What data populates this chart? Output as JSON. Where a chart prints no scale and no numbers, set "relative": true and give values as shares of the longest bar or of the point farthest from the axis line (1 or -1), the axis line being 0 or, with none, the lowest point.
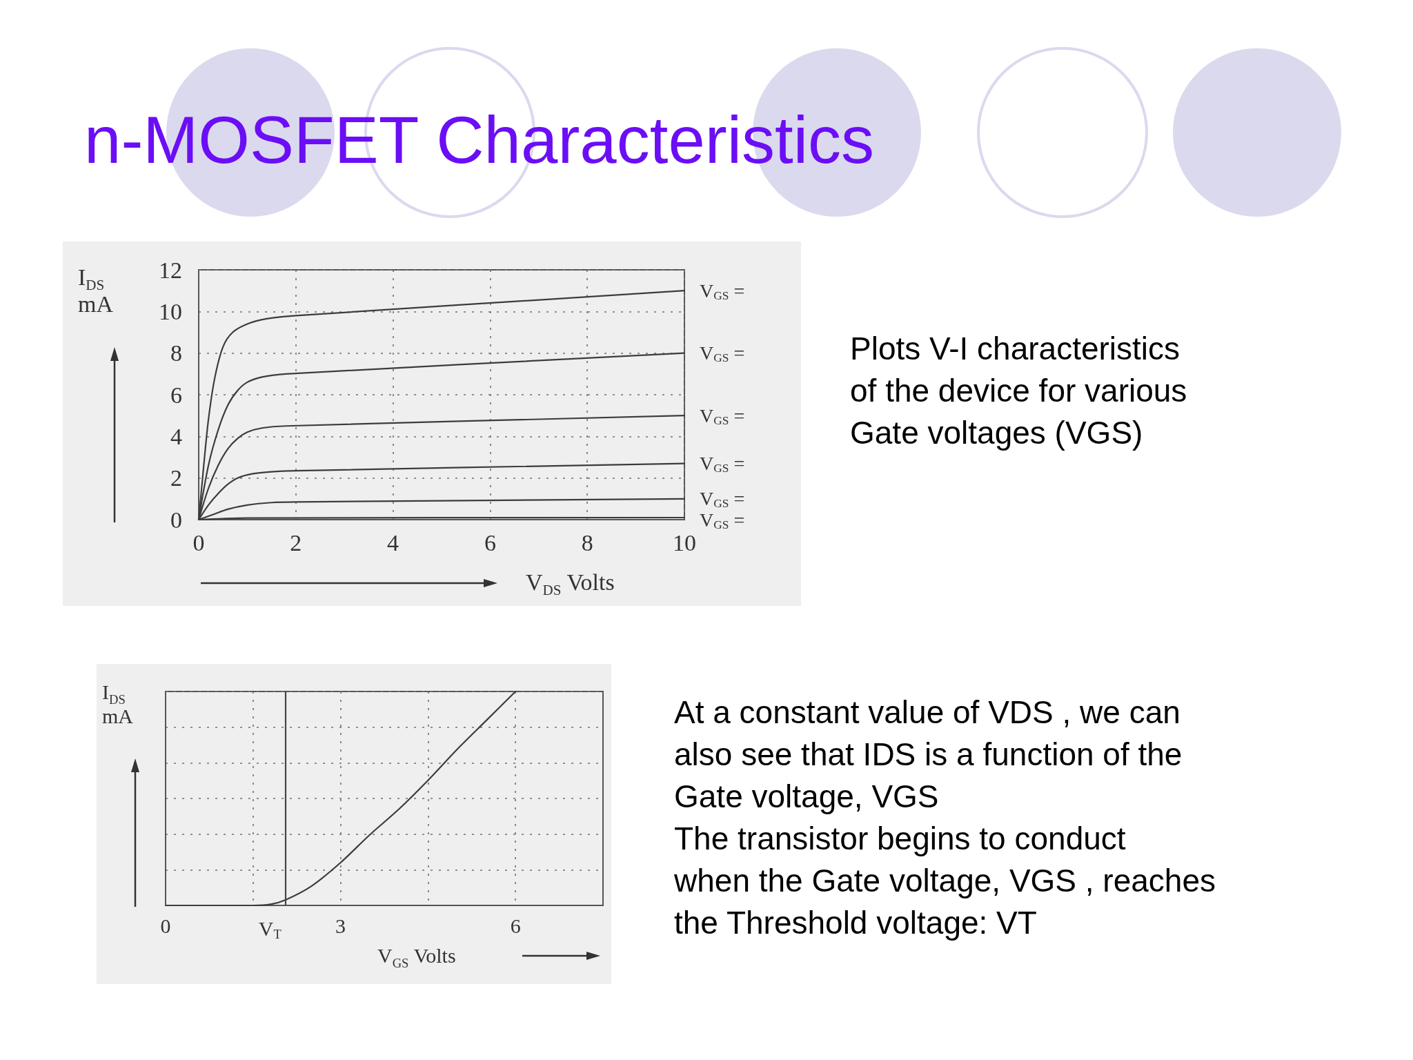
{
  "chart_data": [
    {
      "type": "line",
      "title": "n-MOSFET Characteristics",
      "xlabel": "V$_{DS}$ Volts",
      "ylabel": "I$_{DS}$\nmA",
      "annotations": [
        "Plots V-I characteristics\nof the device for various\nGate voltages (VGS)"
      ],
      "xlim": [
        0,
        10
      ],
      "xticks": [
        0,
        2,
        4,
        6,
        8,
        10
      ],
      "ylim": [
        0,
        12
      ],
      "yticks": [
        0,
        2,
        4,
        6,
        8,
        10,
        12
      ],
      "grid": true,
      "marker": "none",
      "line_style": "solid",
      "series": [
        {
          "name": "V$_{GS}$ =",
          "color": "#3c3c3c",
          "x": [
            0,
            0.1,
            0.2,
            0.33,
            0.5,
            0.7,
            1.0,
            1.4,
            2,
            10
          ],
          "values": [
            0,
            2.5,
            4.8,
            6.8,
            8.3,
            9.0,
            9.4,
            9.65,
            9.8,
            11.0
          ]
        },
        {
          "name": "V$_{GS}$ =",
          "color": "#3c3c3c",
          "x": [
            0,
            0.2,
            0.4,
            0.6,
            0.8,
            1.0,
            1.3,
            1.8,
            10
          ],
          "values": [
            0,
            2.6,
            4.3,
            5.5,
            6.2,
            6.6,
            6.85,
            7.0,
            8.0
          ]
        },
        {
          "name": "V$_{GS}$ =",
          "color": "#3c3c3c",
          "x": [
            0,
            0.2,
            0.4,
            0.6,
            0.8,
            1.0,
            1.3,
            1.8,
            10
          ],
          "values": [
            0,
            1.5,
            2.6,
            3.4,
            3.9,
            4.2,
            4.4,
            4.5,
            5.0
          ]
        },
        {
          "name": "V$_{GS}$ =",
          "color": "#3c3c3c",
          "x": [
            0,
            0.2,
            0.4,
            0.6,
            0.8,
            1.1,
            1.5,
            2,
            10
          ],
          "values": [
            0,
            0.7,
            1.25,
            1.7,
            2.0,
            2.2,
            2.3,
            2.35,
            2.7
          ]
        },
        {
          "name": "V$_{GS}$ =",
          "color": "#3c3c3c",
          "x": [
            0,
            0.3,
            0.6,
            1.0,
            1.5,
            2,
            10
          ],
          "values": [
            0,
            0.25,
            0.5,
            0.7,
            0.82,
            0.85,
            1.0
          ]
        },
        {
          "name": "V$_{GS}$ =",
          "color": "#3c3c3c",
          "x": [
            0,
            0.5,
            1,
            10
          ],
          "values": [
            0,
            0.05,
            0.08,
            0.1
          ]
        }
      ]
    },
    {
      "type": "line",
      "xlabel": "V$_{GS}$ Volts",
      "ylabel": "I$_{DS}$\nmA",
      "annotations": [
        "At a constant value of VDS , we can\nalso see that IDS is a function of the\nGate voltage, VGS\nThe transistor begins to conduct\nwhen the Gate voltage, VGS , reaches\nthe Threshold voltage: VT"
      ],
      "relative": true,
      "xlim": [
        0,
        7.5
      ],
      "xticks": [
        0,
        {
          "value": 1.5,
          "label": null
        },
        3,
        {
          "value": 4.5,
          "label": null
        },
        6
      ],
      "grid": true,
      "marker": "none",
      "line_style": "solid",
      "ref_lines": [
        {
          "axis": "x",
          "value": 2.05,
          "label": "V$_{T}$"
        }
      ],
      "series": [
        {
          "color": "#3c3c3c",
          "x": [
            0,
            1.5,
            1.8,
            2.05,
            2.5,
            3,
            3.5,
            4,
            4.5,
            5,
            5.5,
            6
          ],
          "values": [
            0,
            0,
            0.005,
            0.025,
            0.09,
            0.2,
            0.33,
            0.45,
            0.585,
            0.73,
            0.865,
            1
          ]
        }
      ]
    }
  ]
}
